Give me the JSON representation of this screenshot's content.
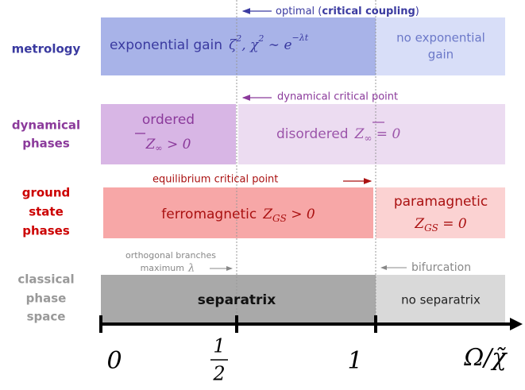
{
  "annotations": {
    "optimal": {
      "before": "optimal (",
      "bold": "critical coupling",
      "after": ")"
    },
    "dynamical_critical_point": "dynamical critical point",
    "equilibrium_critical_point": "equilibrium critical point",
    "orthogonal_branches": [
      "orthogonal branches",
      "maximum",
      "λ"
    ],
    "bifurcation": "bifurcation"
  },
  "rows": [
    {
      "label": [
        "metrology"
      ],
      "boxes": [
        {
          "text": "exponential gain",
          "math": [
            "ζ",
            "2",
            ",  χ",
            "2",
            " ∼ e",
            "−λt"
          ]
        },
        {
          "lines": [
            "no exponential",
            "gain"
          ]
        }
      ]
    },
    {
      "label": [
        "dynamical",
        "phases"
      ],
      "boxes": [
        {
          "lines": [
            "ordered"
          ],
          "math": [
            "Z",
            "∞",
            " > 0"
          ]
        },
        {
          "text": "disordered",
          "math": [
            "Z",
            "∞",
            " = 0"
          ]
        }
      ]
    },
    {
      "label": [
        "ground",
        "state",
        "phases"
      ],
      "boxes": [
        {
          "text": "ferromagnetic",
          "math": [
            "Z",
            "GS",
            " > 0"
          ]
        },
        {
          "lines": [
            "paramagnetic"
          ],
          "math": [
            "Z",
            "GS",
            " = 0"
          ]
        }
      ]
    },
    {
      "label": [
        "classical",
        "phase",
        "space"
      ],
      "boxes": [
        {
          "text": "separatrix"
        },
        {
          "text": "no separatrix"
        }
      ]
    }
  ],
  "axis": {
    "zero": "0",
    "half": {
      "numerator": "1",
      "denominator": "2"
    },
    "one": "1",
    "variable": "Ω/χ̃"
  }
}
